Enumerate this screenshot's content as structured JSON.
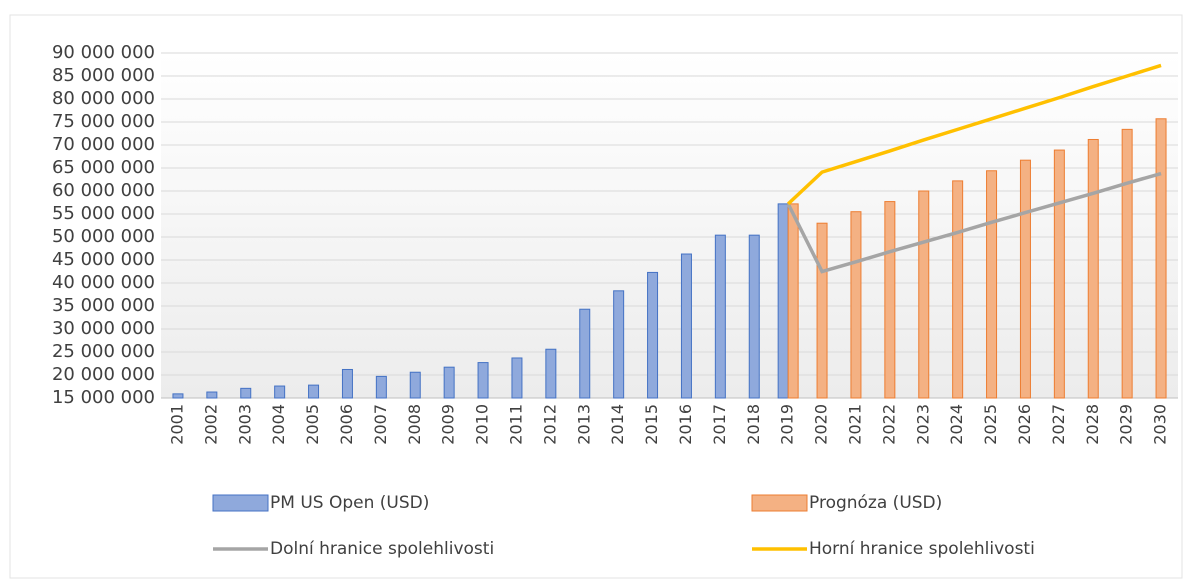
{
  "chart_data": {
    "type": "bar",
    "categories": [
      "2001",
      "2002",
      "2003",
      "2004",
      "2005",
      "2006",
      "2007",
      "2008",
      "2009",
      "2010",
      "2011",
      "2012",
      "2013",
      "2014",
      "2015",
      "2016",
      "2017",
      "2018",
      "2019",
      "2020",
      "2021",
      "2022",
      "2023",
      "2024",
      "2025",
      "2026",
      "2027",
      "2028",
      "2029",
      "2030"
    ],
    "series": [
      {
        "name": "PM US Open (USD)",
        "type": "bar",
        "color": "#8fa9dc",
        "stroke": "#4472c4",
        "values": [
          15900000,
          16300000,
          17100000,
          17600000,
          17800000,
          21200000,
          19700000,
          20600000,
          21700000,
          22700000,
          23700000,
          25600000,
          34300000,
          38300000,
          42300000,
          46300000,
          50400000,
          50400000,
          57200000,
          null,
          null,
          null,
          null,
          null,
          null,
          null,
          null,
          null,
          null,
          null
        ]
      },
      {
        "name": "Prognóza (USD)",
        "type": "bar",
        "color": "#f4b183",
        "stroke": "#ed7d31",
        "values": [
          null,
          null,
          null,
          null,
          null,
          null,
          null,
          null,
          null,
          null,
          null,
          null,
          null,
          null,
          null,
          null,
          null,
          null,
          57200000,
          53000000,
          55500000,
          57700000,
          60000000,
          62200000,
          64400000,
          66700000,
          68900000,
          71200000,
          73400000,
          75700000
        ]
      },
      {
        "name": "Dolní hranice spolehlivosti",
        "type": "line",
        "color": "#a5a5a5",
        "values": [
          null,
          null,
          null,
          null,
          null,
          null,
          null,
          null,
          null,
          null,
          null,
          null,
          null,
          null,
          null,
          null,
          null,
          null,
          57200000,
          42500000,
          44600000,
          46800000,
          48900000,
          51000000,
          53200000,
          55300000,
          57400000,
          59500000,
          61700000,
          63800000
        ]
      },
      {
        "name": "Horní hranice spolehlivosti",
        "type": "line",
        "color": "#ffc000",
        "values": [
          null,
          null,
          null,
          null,
          null,
          null,
          null,
          null,
          null,
          null,
          null,
          null,
          null,
          null,
          null,
          null,
          null,
          null,
          57200000,
          64100000,
          66400000,
          68700000,
          71100000,
          73400000,
          75700000,
          78000000,
          80300000,
          82700000,
          85000000,
          87300000
        ]
      }
    ],
    "ylim": [
      15000000,
      90000000
    ],
    "yticks": [
      {
        "value": 15000000,
        "label": "15 000 000"
      },
      {
        "value": 20000000,
        "label": "20 000 000"
      },
      {
        "value": 25000000,
        "label": "25 000 000"
      },
      {
        "value": 30000000,
        "label": "30 000 000"
      },
      {
        "value": 35000000,
        "label": "35 000 000"
      },
      {
        "value": 40000000,
        "label": "40 000 000"
      },
      {
        "value": 45000000,
        "label": "45 000 000"
      },
      {
        "value": 50000000,
        "label": "50 000 000"
      },
      {
        "value": 55000000,
        "label": "55 000 000"
      },
      {
        "value": 60000000,
        "label": "60 000 000"
      },
      {
        "value": 65000000,
        "label": "65 000 000"
      },
      {
        "value": 70000000,
        "label": "70 000 000"
      },
      {
        "value": 75000000,
        "label": "75 000 000"
      },
      {
        "value": 80000000,
        "label": "80 000 000"
      },
      {
        "value": 85000000,
        "label": "85 000 000"
      },
      {
        "value": 90000000,
        "label": "90 000 000"
      }
    ],
    "grid": true,
    "legend": "bottom"
  }
}
